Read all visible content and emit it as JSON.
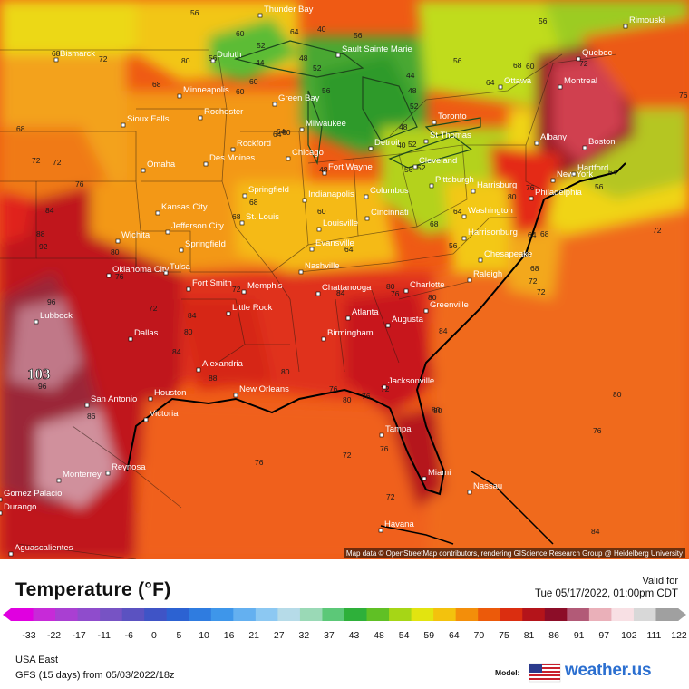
{
  "map": {
    "attribution": "Map data © OpenStreetMap contributors, rendering GIScience Research Group @ Heidelberg University",
    "highlight_value": "103",
    "cities": [
      {
        "name": "Thunder Bay"
      },
      {
        "name": "Bismarck"
      },
      {
        "name": "Duluth"
      },
      {
        "name": "Sault Sainte Marie"
      },
      {
        "name": "Quebec"
      },
      {
        "name": "Rimouski"
      },
      {
        "name": "Ottawa"
      },
      {
        "name": "Montreal"
      },
      {
        "name": "Minneapolis"
      },
      {
        "name": "Rochester"
      },
      {
        "name": "Green Bay"
      },
      {
        "name": "Milwaukee"
      },
      {
        "name": "Toronto"
      },
      {
        "name": "Sioux Falls"
      },
      {
        "name": "Rockford"
      },
      {
        "name": "Chicago"
      },
      {
        "name": "Detroit"
      },
      {
        "name": "St Thomas"
      },
      {
        "name": "Albany"
      },
      {
        "name": "Boston"
      },
      {
        "name": "Des Moines"
      },
      {
        "name": "Omaha"
      },
      {
        "name": "Fort Wayne"
      },
      {
        "name": "Cleveland"
      },
      {
        "name": "New York"
      },
      {
        "name": "Hartford"
      },
      {
        "name": "Springfield"
      },
      {
        "name": "Indianapolis"
      },
      {
        "name": "Columbus"
      },
      {
        "name": "Pittsburgh"
      },
      {
        "name": "Harrisburg"
      },
      {
        "name": "Philadelphia"
      },
      {
        "name": "Kansas City"
      },
      {
        "name": "Jefferson City"
      },
      {
        "name": "St. Louis"
      },
      {
        "name": "Cincinnati"
      },
      {
        "name": "Washington"
      },
      {
        "name": "Wichita"
      },
      {
        "name": "Springfield"
      },
      {
        "name": "Louisville"
      },
      {
        "name": "Evansville"
      },
      {
        "name": "Harrisonburg"
      },
      {
        "name": "Chesapeake"
      },
      {
        "name": "Oklahoma City"
      },
      {
        "name": "Tulsa"
      },
      {
        "name": "Nashville"
      },
      {
        "name": "Raleigh"
      },
      {
        "name": "Fort Smith"
      },
      {
        "name": "Memphis"
      },
      {
        "name": "Chattanooga"
      },
      {
        "name": "Charlotte"
      },
      {
        "name": "Greenville"
      },
      {
        "name": "Lubbock"
      },
      {
        "name": "Little Rock"
      },
      {
        "name": "Atlanta"
      },
      {
        "name": "Augusta"
      },
      {
        "name": "Dallas"
      },
      {
        "name": "Birmingham"
      },
      {
        "name": "Alexandria"
      },
      {
        "name": "San Antonio"
      },
      {
        "name": "Houston"
      },
      {
        "name": "New Orleans"
      },
      {
        "name": "Jacksonville"
      },
      {
        "name": "Victoria"
      },
      {
        "name": "Tampa"
      },
      {
        "name": "Monterrey"
      },
      {
        "name": "Reynosa"
      },
      {
        "name": "Miami"
      },
      {
        "name": "Nassau"
      },
      {
        "name": "Gomez Palacio"
      },
      {
        "name": "Durango"
      },
      {
        "name": "Havana"
      },
      {
        "name": "Aguascalientes"
      }
    ],
    "contour_labels": [
      "56",
      "60",
      "64",
      "52",
      "40",
      "56",
      "44",
      "48",
      "52",
      "56",
      "60",
      "56",
      "68",
      "72",
      "80",
      "68",
      "64",
      "60",
      "72",
      "56",
      "48",
      "44",
      "52",
      "48",
      "40",
      "52",
      "68",
      "72",
      "76",
      "84",
      "88",
      "92",
      "96",
      "80",
      "76",
      "72",
      "84",
      "80",
      "88",
      "96",
      "86",
      "84",
      "80",
      "76",
      "72",
      "80",
      "76",
      "72",
      "76",
      "80",
      "84",
      "80",
      "76",
      "72",
      "76",
      "80",
      "56",
      "60",
      "64",
      "68",
      "72",
      "76",
      "64",
      "56",
      "72",
      "56",
      "68",
      "64",
      "72",
      "72",
      "68",
      "64",
      "68",
      "80",
      "84",
      "72",
      "68",
      "64",
      "60",
      "56",
      "52",
      "48",
      "60",
      "64",
      "68",
      "76",
      "80",
      "84",
      "88",
      "76",
      "80"
    ]
  },
  "legend": {
    "title": "Temperature (°F)",
    "valid_label": "Valid for",
    "valid_time": "Tue 05/17/2022, 01:00pm CDT",
    "ticks": [
      "-33",
      "-22",
      "-17",
      "-11",
      "-6",
      "0",
      "5",
      "10",
      "16",
      "21",
      "27",
      "32",
      "37",
      "43",
      "48",
      "54",
      "59",
      "64",
      "70",
      "75",
      "81",
      "86",
      "91",
      "97",
      "102",
      "111",
      "122"
    ],
    "colors": [
      "#e000e0",
      "#c72ad8",
      "#a93fd2",
      "#8f4ccc",
      "#7753c4",
      "#5b52c1",
      "#3f54c6",
      "#2c62d2",
      "#2f7ce0",
      "#3e96ea",
      "#64b0f0",
      "#8cc8f2",
      "#b6dbe8",
      "#9ad9b6",
      "#5cc878",
      "#2eb03a",
      "#60c025",
      "#a6d616",
      "#e2e410",
      "#f3c20d",
      "#f38e0a",
      "#ec5a0a",
      "#db2e10",
      "#b4141a",
      "#8c0d28",
      "#b25a77",
      "#eab0b9",
      "#f8e0e4",
      "#d8d8d8",
      "#a0a0a0"
    ],
    "region": "USA East",
    "model_run": "GFS (15 days) from 05/03/2022/18z",
    "model_label": "Model:",
    "brand": "weather.us"
  }
}
